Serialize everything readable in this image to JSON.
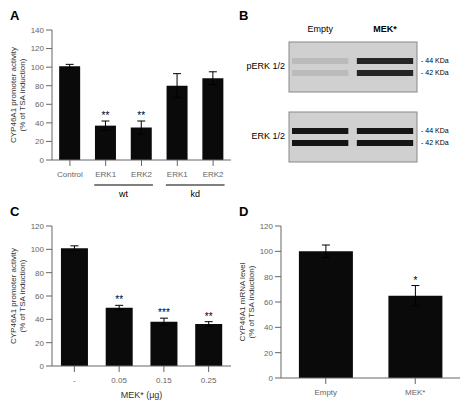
{
  "chart_data": [
    {
      "type": "bar",
      "title": "A",
      "categories": [
        "Control",
        "ERK1",
        "ERK2",
        "ERK1",
        "ERK2"
      ],
      "values": [
        101,
        37,
        35,
        80,
        88
      ],
      "errors": [
        2,
        5,
        7,
        13,
        7
      ],
      "sig_labels": [
        null,
        "**",
        "**",
        null,
        null
      ],
      "ylabel": "CYP46A1 promoter activity\n(% of TSA induction)",
      "ylim": [
        0,
        140
      ],
      "yticks": [
        0,
        20,
        40,
        60,
        80,
        100,
        120,
        140
      ],
      "color": "#0a0a0a",
      "annotations": [
        {
          "text": "wt",
          "from": 1,
          "to": 2
        },
        {
          "text": "kd",
          "from": 3,
          "to": 4
        }
      ]
    },
    {
      "type": "blot",
      "title": "B",
      "col_labels": [
        "Empty",
        "MEK*"
      ],
      "row_labels": [
        "pERK 1/2",
        "ERK 1/2"
      ],
      "size_labels": [
        "- 44 KDa",
        "- 42 KDa"
      ],
      "colors": [
        [
          "#bbbbbb",
          "#252525"
        ],
        [
          "#151515",
          "#151515"
        ]
      ]
    },
    {
      "type": "bar",
      "title": "C",
      "categories": [
        "-",
        "0.05",
        "0.15",
        "0.25"
      ],
      "values": [
        101,
        50,
        38,
        36
      ],
      "errors": [
        2,
        2,
        3,
        2
      ],
      "sig_labels": [
        null,
        "**",
        "***",
        "**"
      ],
      "ylabel": "CYP46A1 promoter activity\n(% of TSA induction)",
      "xlabel": "MEK* (μg)",
      "ylim": [
        0,
        120
      ],
      "yticks": [
        0,
        20,
        40,
        60,
        80,
        100,
        120
      ],
      "color": "#0a0a0a"
    },
    {
      "type": "bar",
      "title": "D",
      "categories": [
        "Empty",
        "MEK*"
      ],
      "values": [
        100,
        65
      ],
      "errors": [
        5,
        8
      ],
      "sig_labels": [
        null,
        "*"
      ],
      "ylabel": "CYP46A1 mRNA level\n(% of TSA induction)",
      "ylim": [
        0,
        120
      ],
      "yticks": [
        0,
        20,
        40,
        60,
        80,
        100,
        120
      ],
      "color": "#0a0a0a"
    }
  ]
}
